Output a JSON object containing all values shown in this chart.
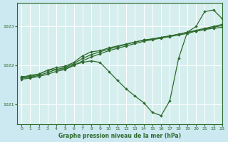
{
  "title": "Graphe pression niveau de la mer (hPa)",
  "bg_color": "#cce8f0",
  "plot_bg_color": "#d6eeee",
  "line_color": "#2d6a2d",
  "grid_color": "#ffffff",
  "xlim": [
    -0.5,
    23
  ],
  "ylim": [
    1020.5,
    1023.6
  ],
  "yticks": [
    1021,
    1022,
    1023
  ],
  "xticks": [
    0,
    1,
    2,
    3,
    4,
    5,
    6,
    7,
    8,
    9,
    10,
    11,
    12,
    13,
    14,
    15,
    16,
    17,
    18,
    19,
    20,
    21,
    22,
    23
  ],
  "line1_y": [
    1021.72,
    1021.72,
    1021.78,
    1021.88,
    1021.95,
    1021.98,
    1022.08,
    1022.25,
    1022.35,
    1022.38,
    1022.45,
    1022.5,
    1022.55,
    1022.6,
    1022.65,
    1022.68,
    1022.72,
    1022.75,
    1022.8,
    1022.85,
    1022.88,
    1022.92,
    1022.95,
    1022.98
  ],
  "line2_y": [
    1021.68,
    1021.7,
    1021.75,
    1021.82,
    1021.9,
    1021.95,
    1022.05,
    1022.18,
    1022.28,
    1022.35,
    1022.42,
    1022.48,
    1022.54,
    1022.6,
    1022.65,
    1022.68,
    1022.72,
    1022.76,
    1022.8,
    1022.85,
    1022.9,
    1022.95,
    1023.0,
    1023.05
  ],
  "line3_y": [
    1021.65,
    1021.68,
    1021.72,
    1021.78,
    1021.85,
    1021.9,
    1022.0,
    1022.12,
    1022.22,
    1022.3,
    1022.38,
    1022.44,
    1022.5,
    1022.56,
    1022.62,
    1022.66,
    1022.7,
    1022.74,
    1022.78,
    1022.82,
    1022.88,
    1022.93,
    1022.98,
    1023.02
  ],
  "main_y": [
    1021.7,
    1021.75,
    1021.78,
    1021.88,
    1021.9,
    1021.92,
    1022.02,
    1022.08,
    1022.12,
    1022.08,
    1021.85,
    1021.62,
    1021.4,
    1021.22,
    1021.05,
    1020.8,
    1020.72,
    1021.1,
    1022.18,
    1022.85,
    1023.0,
    1023.38,
    1023.42,
    1023.2
  ],
  "xlabel_fontsize": 5.5,
  "tick_fontsize": 4.5,
  "linewidth": 0.9,
  "markersize": 2.2
}
